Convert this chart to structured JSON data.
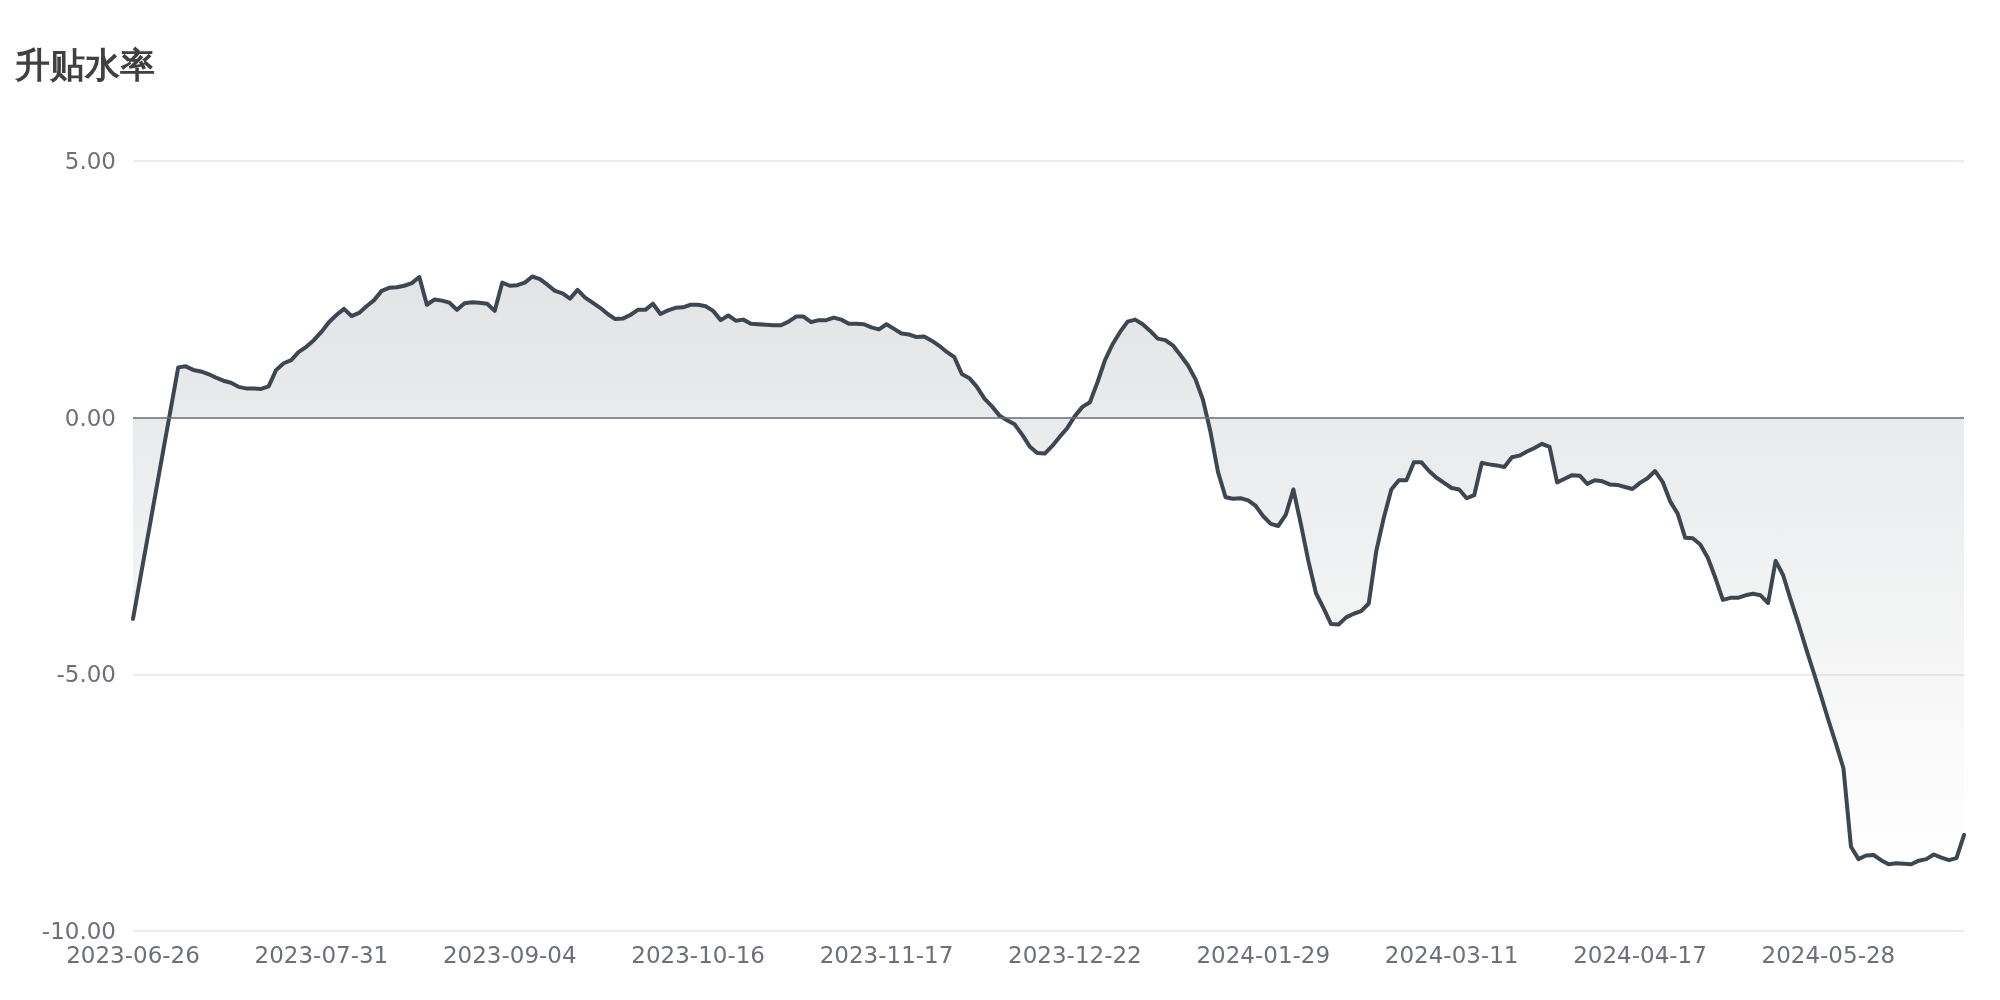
{
  "chart_data": {
    "type": "area",
    "title": "升贴水率",
    "categories": [
      "2023-06-26",
      null,
      null,
      null,
      null,
      null,
      null,
      null,
      null,
      null,
      null,
      null,
      null,
      null,
      null,
      null,
      null,
      null,
      null,
      null,
      null,
      null,
      null,
      null,
      null,
      "2023-07-31",
      null,
      null,
      null,
      null,
      null,
      null,
      null,
      null,
      null,
      null,
      null,
      null,
      null,
      null,
      null,
      null,
      null,
      null,
      null,
      null,
      null,
      null,
      null,
      null,
      "2023-09-04",
      null,
      null,
      null,
      null,
      null,
      null,
      null,
      null,
      null,
      null,
      null,
      null,
      null,
      null,
      null,
      null,
      null,
      null,
      null,
      null,
      null,
      null,
      null,
      null,
      "2023-10-16",
      null,
      null,
      null,
      null,
      null,
      null,
      null,
      null,
      null,
      null,
      null,
      null,
      null,
      null,
      null,
      null,
      null,
      null,
      null,
      null,
      null,
      null,
      null,
      null,
      "2023-11-17",
      null,
      null,
      null,
      null,
      null,
      null,
      null,
      null,
      null,
      null,
      null,
      null,
      null,
      null,
      null,
      null,
      null,
      null,
      null,
      null,
      null,
      null,
      null,
      null,
      "2023-12-22",
      null,
      null,
      null,
      null,
      null,
      null,
      null,
      null,
      null,
      null,
      null,
      null,
      null,
      null,
      null,
      null,
      null,
      null,
      null,
      null,
      null,
      null,
      null,
      null,
      "2024-01-29",
      null,
      null,
      null,
      null,
      null,
      null,
      null,
      null,
      null,
      null,
      null,
      null,
      null,
      null,
      null,
      null,
      null,
      null,
      null,
      null,
      null,
      null,
      null,
      null,
      "2024-03-11",
      null,
      null,
      null,
      null,
      null,
      null,
      null,
      null,
      null,
      null,
      null,
      null,
      null,
      null,
      null,
      null,
      null,
      null,
      null,
      null,
      null,
      null,
      null,
      null,
      "2024-04-17",
      null,
      null,
      null,
      null,
      null,
      null,
      null,
      null,
      null,
      null,
      null,
      null,
      null,
      null,
      null,
      null,
      null,
      null,
      null,
      null,
      null,
      null,
      null,
      null,
      "2024-05-28",
      null,
      null,
      null,
      null,
      null,
      null,
      null,
      null,
      null,
      null,
      null,
      null,
      null,
      null,
      null,
      null,
      null,
      null
    ],
    "series": [
      {
        "color": "#3d4651",
        "values": [
          -3.92,
          -3.1,
          -2.29,
          -1.47,
          -0.65,
          0.16,
          0.98,
          1.0,
          0.93,
          0.9,
          0.85,
          0.78,
          0.72,
          0.68,
          0.6,
          0.57,
          0.57,
          0.56,
          0.61,
          0.93,
          1.06,
          1.12,
          1.28,
          1.38,
          1.51,
          1.67,
          1.86,
          2.0,
          2.12,
          1.98,
          2.04,
          2.17,
          2.29,
          2.47,
          2.53,
          2.54,
          2.57,
          2.62,
          2.74,
          2.2,
          2.3,
          2.28,
          2.24,
          2.1,
          2.23,
          2.25,
          2.24,
          2.22,
          2.08,
          2.63,
          2.57,
          2.58,
          2.63,
          2.75,
          2.7,
          2.59,
          2.47,
          2.42,
          2.32,
          2.49,
          2.34,
          2.24,
          2.14,
          2.02,
          1.92,
          1.93,
          2.0,
          2.1,
          2.1,
          2.22,
          2.02,
          2.09,
          2.14,
          2.15,
          2.2,
          2.2,
          2.17,
          2.08,
          1.9,
          1.99,
          1.89,
          1.91,
          1.83,
          1.82,
          1.81,
          1.8,
          1.8,
          1.87,
          1.97,
          1.97,
          1.86,
          1.9,
          1.9,
          1.95,
          1.91,
          1.83,
          1.83,
          1.82,
          1.76,
          1.72,
          1.82,
          1.73,
          1.64,
          1.62,
          1.57,
          1.58,
          1.5,
          1.4,
          1.28,
          1.18,
          0.85,
          0.77,
          0.6,
          0.37,
          0.22,
          0.04,
          -0.05,
          -0.13,
          -0.33,
          -0.56,
          -0.69,
          -0.7,
          -0.55,
          -0.37,
          -0.2,
          0.03,
          0.21,
          0.3,
          0.69,
          1.12,
          1.43,
          1.67,
          1.87,
          1.91,
          1.82,
          1.69,
          1.54,
          1.51,
          1.41,
          1.22,
          1.02,
          0.75,
          0.35,
          -0.28,
          -1.06,
          -1.55,
          -1.58,
          -1.57,
          -1.61,
          -1.72,
          -1.92,
          -2.07,
          -2.11,
          -1.89,
          -1.4,
          -2.08,
          -2.8,
          -3.42,
          -3.71,
          -4.02,
          -4.03,
          -3.89,
          -3.82,
          -3.77,
          -3.62,
          -2.6,
          -1.95,
          -1.4,
          -1.22,
          -1.22,
          -0.87,
          -0.87,
          -1.04,
          -1.17,
          -1.27,
          -1.37,
          -1.4,
          -1.57,
          -1.51,
          -0.88,
          -0.91,
          -0.93,
          -0.96,
          -0.77,
          -0.74,
          -0.66,
          -0.59,
          -0.51,
          -0.57,
          -1.26,
          -1.19,
          -1.12,
          -1.13,
          -1.29,
          -1.22,
          -1.24,
          -1.3,
          -1.31,
          -1.35,
          -1.39,
          -1.27,
          -1.18,
          -1.04,
          -1.25,
          -1.63,
          -1.87,
          -2.34,
          -2.35,
          -2.47,
          -2.73,
          -3.12,
          -3.55,
          -3.51,
          -3.51,
          -3.46,
          -3.43,
          -3.46,
          -3.61,
          -2.79,
          -3.07,
          -3.55,
          -4.0,
          -4.48,
          -4.94,
          -5.41,
          -5.89,
          -6.35,
          -6.83,
          -8.36,
          -8.6,
          -8.53,
          -8.52,
          -8.62,
          -8.7,
          -8.68,
          -8.69,
          -8.7,
          -8.63,
          -8.6,
          -8.51,
          -8.57,
          -8.62,
          -8.58,
          -8.13
        ]
      }
    ],
    "ylim": [
      -10,
      5
    ],
    "yticks": [
      {
        "value": -10,
        "label": "-10.00"
      },
      {
        "value": -5,
        "label": "-5.00"
      },
      {
        "value": 0,
        "label": "0.00"
      },
      {
        "value": 5,
        "label": "5.00"
      }
    ],
    "grid": "y",
    "ref_lines": [
      {
        "axis": "y",
        "value": 0,
        "color": "#6e7079"
      }
    ]
  }
}
